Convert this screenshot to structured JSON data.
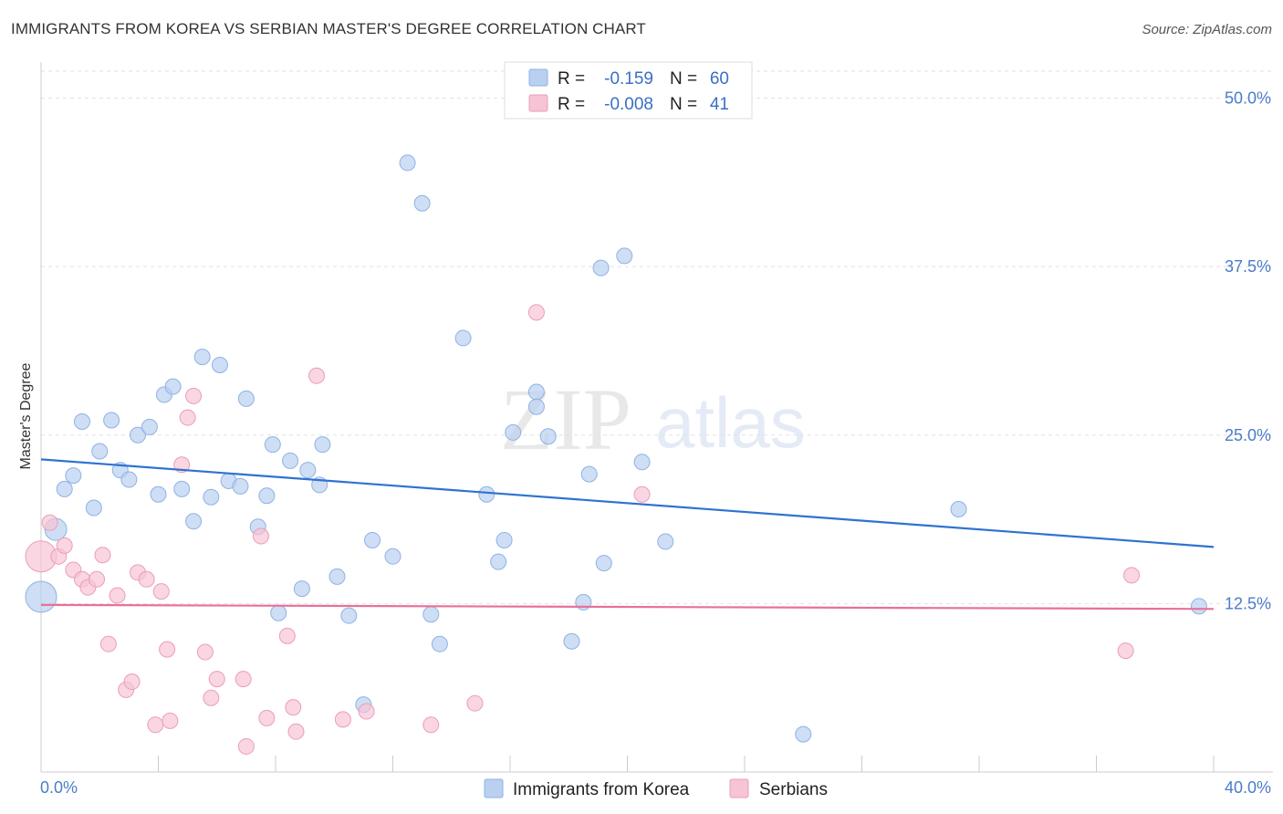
{
  "title": "IMMIGRANTS FROM KOREA VS SERBIAN MASTER'S DEGREE CORRELATION CHART",
  "source": "Source: ZipAtlas.com",
  "watermark": {
    "zip": "ZIP",
    "atlas": "atlas"
  },
  "colors": {
    "korea_fill": "#b9d0f0",
    "korea_stroke": "#8fb2e4",
    "korea_line": "#2f72d0",
    "serb_fill": "#f6c4d4",
    "serb_stroke": "#ec9db8",
    "serb_line": "#e8709a",
    "tick": "#4a7cc9"
  },
  "legend": {
    "rows": [
      {
        "r_label": "R =",
        "r_value": "-0.159",
        "n_label": "N =",
        "n_value": "60"
      },
      {
        "r_label": "R =",
        "r_value": "-0.008",
        "n_label": "N =",
        "n_value": "41"
      }
    ]
  },
  "chart_data": {
    "type": "scatter",
    "title": "IMMIGRANTS FROM KOREA VS SERBIAN MASTER'S DEGREE CORRELATION CHART",
    "xlabel": "",
    "ylabel": "Master's Degree",
    "xlim": [
      0,
      40
    ],
    "ylim": [
      0,
      52
    ],
    "x_tick_labels": [
      "0.0%",
      "40.0%"
    ],
    "y_ticks": [
      12.5,
      25.0,
      37.5,
      50.0
    ],
    "y_tick_labels": [
      "12.5%",
      "25.0%",
      "37.5%",
      "50.0%"
    ],
    "grid": true,
    "series": [
      {
        "name": "Immigrants from Korea",
        "trend": [
          [
            0,
            23.2
          ],
          [
            40,
            16.7
          ]
        ],
        "points": [
          [
            0.0,
            13.0,
            3
          ],
          [
            0.5,
            18.0,
            2
          ],
          [
            0.8,
            21.0,
            1
          ],
          [
            1.1,
            22.0,
            1
          ],
          [
            1.4,
            26.0,
            1
          ],
          [
            1.8,
            19.6,
            1
          ],
          [
            2.0,
            23.8,
            1
          ],
          [
            2.4,
            26.1,
            1
          ],
          [
            2.7,
            22.4,
            1
          ],
          [
            3.0,
            21.7,
            1
          ],
          [
            3.3,
            25.0,
            1
          ],
          [
            3.7,
            25.6,
            1
          ],
          [
            4.0,
            20.6,
            1
          ],
          [
            4.2,
            28.0,
            1
          ],
          [
            4.5,
            28.6,
            1
          ],
          [
            4.8,
            21.0,
            1
          ],
          [
            5.2,
            18.6,
            1
          ],
          [
            5.5,
            30.8,
            1
          ],
          [
            5.8,
            20.4,
            1
          ],
          [
            6.1,
            30.2,
            1
          ],
          [
            6.4,
            21.6,
            1
          ],
          [
            6.8,
            21.2,
            1
          ],
          [
            7.0,
            27.7,
            1
          ],
          [
            7.4,
            18.2,
            1
          ],
          [
            7.7,
            20.5,
            1
          ],
          [
            7.9,
            24.3,
            1
          ],
          [
            8.1,
            11.8,
            1
          ],
          [
            8.5,
            23.1,
            1
          ],
          [
            8.9,
            13.6,
            1
          ],
          [
            9.1,
            22.4,
            1
          ],
          [
            9.5,
            21.3,
            1
          ],
          [
            9.6,
            24.3,
            1
          ],
          [
            10.1,
            14.5,
            1
          ],
          [
            10.5,
            11.6,
            1
          ],
          [
            11.0,
            5.0,
            1
          ],
          [
            11.3,
            17.2,
            1
          ],
          [
            12.0,
            16.0,
            1
          ],
          [
            12.5,
            45.2,
            1
          ],
          [
            13.0,
            42.2,
            1
          ],
          [
            13.3,
            11.7,
            1
          ],
          [
            13.6,
            9.5,
            1
          ],
          [
            14.4,
            32.2,
            1
          ],
          [
            15.2,
            20.6,
            1
          ],
          [
            15.6,
            15.6,
            1
          ],
          [
            15.8,
            17.2,
            1
          ],
          [
            16.1,
            25.2,
            1
          ],
          [
            16.9,
            28.2,
            1
          ],
          [
            16.9,
            27.1,
            1
          ],
          [
            17.3,
            24.9,
            1
          ],
          [
            18.1,
            9.7,
            1
          ],
          [
            18.5,
            12.6,
            1
          ],
          [
            18.7,
            22.1,
            1
          ],
          [
            19.1,
            37.4,
            1
          ],
          [
            19.2,
            15.5,
            1
          ],
          [
            19.9,
            38.3,
            1
          ],
          [
            20.5,
            23.0,
            1
          ],
          [
            21.3,
            17.1,
            1
          ],
          [
            26.0,
            2.8,
            1
          ],
          [
            31.3,
            19.5,
            1
          ],
          [
            39.5,
            12.3,
            1
          ]
        ]
      },
      {
        "name": "Serbians",
        "trend": [
          [
            0,
            12.4
          ],
          [
            40,
            12.1
          ]
        ],
        "points": [
          [
            0.0,
            16.0,
            3
          ],
          [
            0.3,
            18.5,
            1
          ],
          [
            0.6,
            16.0,
            1
          ],
          [
            0.8,
            16.8,
            1
          ],
          [
            1.1,
            15.0,
            1
          ],
          [
            1.4,
            14.3,
            1
          ],
          [
            1.6,
            13.7,
            1
          ],
          [
            1.9,
            14.3,
            1
          ],
          [
            2.1,
            16.1,
            1
          ],
          [
            2.3,
            9.5,
            1
          ],
          [
            2.6,
            13.1,
            1
          ],
          [
            2.9,
            6.1,
            1
          ],
          [
            3.1,
            6.7,
            1
          ],
          [
            3.3,
            14.8,
            1
          ],
          [
            3.6,
            14.3,
            1
          ],
          [
            3.9,
            3.5,
            1
          ],
          [
            4.1,
            13.4,
            1
          ],
          [
            4.3,
            9.1,
            1
          ],
          [
            4.4,
            3.8,
            1
          ],
          [
            4.8,
            22.8,
            1
          ],
          [
            5.0,
            26.3,
            1
          ],
          [
            5.2,
            27.9,
            1
          ],
          [
            5.6,
            8.9,
            1
          ],
          [
            5.8,
            5.5,
            1
          ],
          [
            6.0,
            6.9,
            1
          ],
          [
            6.9,
            6.9,
            1
          ],
          [
            7.0,
            1.9,
            1
          ],
          [
            7.5,
            17.5,
            1
          ],
          [
            7.7,
            4.0,
            1
          ],
          [
            8.4,
            10.1,
            1
          ],
          [
            8.6,
            4.8,
            1
          ],
          [
            8.7,
            3.0,
            1
          ],
          [
            9.4,
            29.4,
            1
          ],
          [
            10.3,
            3.9,
            1
          ],
          [
            11.1,
            4.5,
            1
          ],
          [
            13.3,
            3.5,
            1
          ],
          [
            14.8,
            5.1,
            1
          ],
          [
            16.9,
            34.1,
            1
          ],
          [
            20.5,
            20.6,
            1
          ],
          [
            37.0,
            9.0,
            1
          ],
          [
            37.2,
            14.6,
            1
          ]
        ]
      }
    ]
  },
  "bottom_legend": {
    "korea_label": "Immigrants from Korea",
    "serb_label": "Serbians"
  }
}
